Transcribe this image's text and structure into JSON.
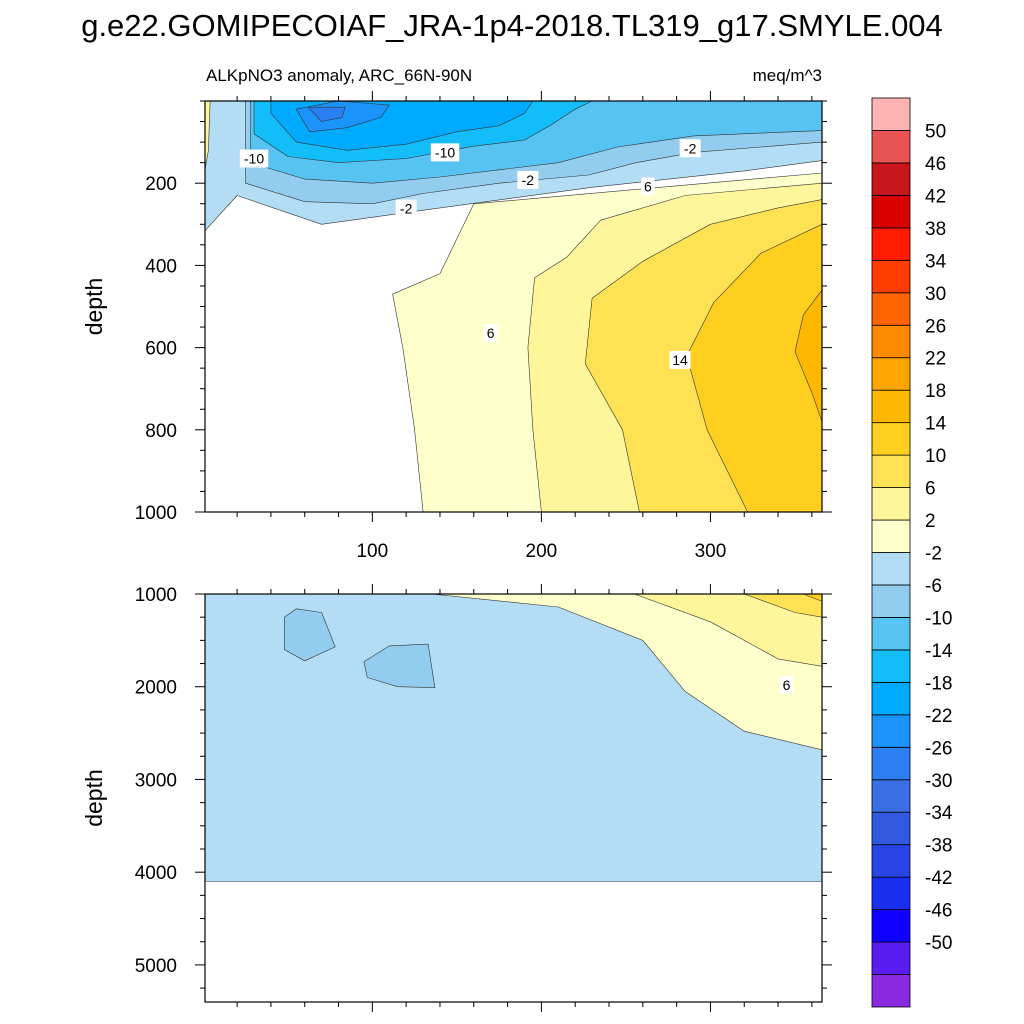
{
  "figure": {
    "title": "g.e22.GOMIPECOIAF_JRA-1p4-2018.TL319_g17.SMYLE.004",
    "subtitle_left": "ALKpNO3 anomaly, ARC_66N-90N",
    "subtitle_right": "meq/m^3"
  },
  "chart_data": [
    {
      "type": "heatmap",
      "panel": "upper",
      "title": "ALKpNO3 anomaly, ARC_66N-90N",
      "units": "meq/m^3",
      "xlabel": "",
      "ylabel": "depth",
      "xlim": [
        1,
        366
      ],
      "ylim": [
        1000,
        0
      ],
      "x_ticks": [
        100,
        200,
        300
      ],
      "y_ticks": [
        200,
        400,
        600,
        800,
        1000
      ],
      "contour_labels": [
        {
          "text": "-10",
          "x": 30,
          "y": 140
        },
        {
          "text": "-10",
          "x": 143,
          "y": 125
        },
        {
          "text": "-2",
          "x": 288,
          "y": 115
        },
        {
          "text": "-2",
          "x": 192,
          "y": 192
        },
        {
          "text": "-2",
          "x": 120,
          "y": 262
        },
        {
          "text": "6",
          "x": 263,
          "y": 208
        },
        {
          "text": "6",
          "x": 170,
          "y": 565
        },
        {
          "text": "14",
          "x": 282,
          "y": 630
        }
      ],
      "regions": [
        {
          "value": 4,
          "points": [
            [
              130,
              1000
            ],
            [
              125,
              800
            ],
            [
              118,
              600
            ],
            [
              112,
              470
            ],
            [
              140,
              420
            ],
            [
              160,
              250
            ],
            [
              380,
              170
            ],
            [
              366,
              1000
            ]
          ]
        },
        {
          "value": 8,
          "points": [
            [
              200,
              1000
            ],
            [
              195,
              800
            ],
            [
              192,
              600
            ],
            [
              196,
              430
            ],
            [
              215,
              380
            ],
            [
              235,
              290
            ],
            [
              285,
              230
            ],
            [
              366,
              200
            ],
            [
              366,
              1000
            ]
          ]
        },
        {
          "value": 12,
          "points": [
            [
              258,
              1000
            ],
            [
              248,
              800
            ],
            [
              226,
              640
            ],
            [
              230,
              480
            ],
            [
              260,
              390
            ],
            [
              300,
              300
            ],
            [
              340,
              260
            ],
            [
              366,
              240
            ],
            [
              366,
              1000
            ]
          ]
        },
        {
          "value": 16,
          "points": [
            [
              322,
              1000
            ],
            [
              298,
              800
            ],
            [
              286,
              620
            ],
            [
              302,
              490
            ],
            [
              330,
              370
            ],
            [
              366,
              300
            ],
            [
              366,
              1000
            ]
          ]
        },
        {
          "value": 20,
          "points": [
            [
              366,
              460
            ],
            [
              355,
              520
            ],
            [
              350,
              610
            ],
            [
              360,
              710
            ],
            [
              366,
              780
            ]
          ]
        },
        {
          "value": 0,
          "points": [
            [
              0,
              320
            ],
            [
              20,
              230
            ],
            [
              70,
              300
            ],
            [
              140,
              260
            ],
            [
              230,
              210
            ],
            [
              320,
              170
            ],
            [
              366,
              145
            ],
            [
              366,
              0
            ],
            [
              0,
              0
            ]
          ]
        },
        {
          "value": -4,
          "points": [
            [
              25,
              200
            ],
            [
              60,
              245
            ],
            [
              100,
              250
            ],
            [
              130,
              225
            ],
            [
              175,
              200
            ],
            [
              228,
              180
            ],
            [
              256,
              150
            ],
            [
              290,
              125
            ],
            [
              330,
              112
            ],
            [
              366,
              100
            ],
            [
              366,
              0
            ],
            [
              25,
              0
            ]
          ]
        },
        {
          "value": -8,
          "points": [
            [
              28,
              150
            ],
            [
              60,
              190
            ],
            [
              100,
              200
            ],
            [
              140,
              185
            ],
            [
              180,
              165
            ],
            [
              210,
              150
            ],
            [
              245,
              112
            ],
            [
              290,
              85
            ],
            [
              330,
              78
            ],
            [
              366,
              72
            ],
            [
              366,
              0
            ],
            [
              28,
              0
            ]
          ]
        },
        {
          "value": -12,
          "points": [
            [
              30,
              80
            ],
            [
              50,
              135
            ],
            [
              80,
              150
            ],
            [
              120,
              140
            ],
            [
              160,
              110
            ],
            [
              190,
              95
            ],
            [
              205,
              60
            ],
            [
              220,
              20
            ],
            [
              230,
              0
            ],
            [
              30,
              0
            ]
          ]
        },
        {
          "value": -16,
          "points": [
            [
              40,
              30
            ],
            [
              55,
              100
            ],
            [
              85,
              120
            ],
            [
              120,
              105
            ],
            [
              150,
              75
            ],
            [
              175,
              60
            ],
            [
              190,
              30
            ],
            [
              195,
              0
            ],
            [
              40,
              0
            ]
          ]
        },
        {
          "value": -20,
          "points": [
            [
              55,
              20
            ],
            [
              63,
              75
            ],
            [
              85,
              65
            ],
            [
              105,
              40
            ],
            [
              110,
              10
            ],
            [
              80,
              0
            ]
          ]
        },
        {
          "value": -24,
          "points": [
            [
              62,
              15
            ],
            [
              70,
              50
            ],
            [
              82,
              40
            ],
            [
              84,
              15
            ]
          ]
        },
        {
          "value": 8,
          "points": [
            [
              0,
              0
            ],
            [
              4,
              0
            ],
            [
              3,
              120
            ],
            [
              0,
              190
            ]
          ]
        }
      ]
    },
    {
      "type": "heatmap",
      "panel": "lower",
      "xlabel": "",
      "ylabel": "depth",
      "xlim": [
        1,
        366
      ],
      "ylim": [
        5400,
        1000
      ],
      "y_ticks": [
        1000,
        2000,
        3000,
        4000,
        5000
      ],
      "data_bottom_depth": 4100,
      "contour_labels": [
        {
          "text": "6",
          "x": 345,
          "y": 1980
        }
      ],
      "regions": [
        {
          "value": 0,
          "points": [
            [
              0,
              1000
            ],
            [
              366,
              1000
            ],
            [
              366,
              4100
            ],
            [
              0,
              4100
            ]
          ]
        },
        {
          "value": 4,
          "points": [
            [
              135,
              1000
            ],
            [
              210,
              1140
            ],
            [
              260,
              1500
            ],
            [
              285,
              2050
            ],
            [
              320,
              2480
            ],
            [
              366,
              2680
            ],
            [
              366,
              1000
            ]
          ]
        },
        {
          "value": 8,
          "points": [
            [
              255,
              1000
            ],
            [
              300,
              1300
            ],
            [
              340,
              1700
            ],
            [
              366,
              1780
            ],
            [
              366,
              1000
            ]
          ]
        },
        {
          "value": 12,
          "points": [
            [
              320,
              1000
            ],
            [
              350,
              1200
            ],
            [
              366,
              1250
            ],
            [
              366,
              1000
            ]
          ]
        },
        {
          "value": 16,
          "points": [
            [
              355,
              1000
            ],
            [
              366,
              1080
            ],
            [
              366,
              1000
            ]
          ]
        },
        {
          "value": -4,
          "points": [
            [
              48,
              1250
            ],
            [
              55,
              1160
            ],
            [
              70,
              1200
            ],
            [
              78,
              1570
            ],
            [
              60,
              1720
            ],
            [
              48,
              1600
            ]
          ]
        },
        {
          "value": -4,
          "points": [
            [
              95,
              1730
            ],
            [
              110,
              1560
            ],
            [
              133,
              1540
            ],
            [
              137,
              2010
            ],
            [
              115,
              2000
            ],
            [
              97,
              1900
            ]
          ]
        }
      ]
    }
  ],
  "colorbar": {
    "levels": [
      -50,
      -46,
      -42,
      -38,
      -34,
      -30,
      -26,
      -22,
      -18,
      -14,
      -10,
      -6,
      -2,
      2,
      6,
      10,
      14,
      18,
      22,
      26,
      30,
      34,
      38,
      42,
      46,
      50
    ],
    "labels": [
      "50",
      "46",
      "42",
      "38",
      "34",
      "30",
      "26",
      "22",
      "18",
      "14",
      "10",
      "6",
      "2",
      "-2",
      "-6",
      "-10",
      "-14",
      "-18",
      "-22",
      "-26",
      "-30",
      "-34",
      "-38",
      "-42",
      "-46",
      "-50"
    ],
    "colors": [
      "#8a2be2",
      "#5b1cf0",
      "#0f00ff",
      "#1a2ef0",
      "#2a45e6",
      "#3359e0",
      "#3a6fe6",
      "#2c7ff0",
      "#1a93fb",
      "#00aaff",
      "#13bdfa",
      "#57c3f2",
      "#92cdf0",
      "#b3ddf5",
      "#ffffcc",
      "#fff59a",
      "#ffe253",
      "#ffcf1f",
      "#ffb800",
      "#ffa500",
      "#ff8a00",
      "#ff6400",
      "#ff3c00",
      "#ff1c00",
      "#d90000",
      "#c8161c",
      "#e85454",
      "#ffb3b3"
    ]
  }
}
